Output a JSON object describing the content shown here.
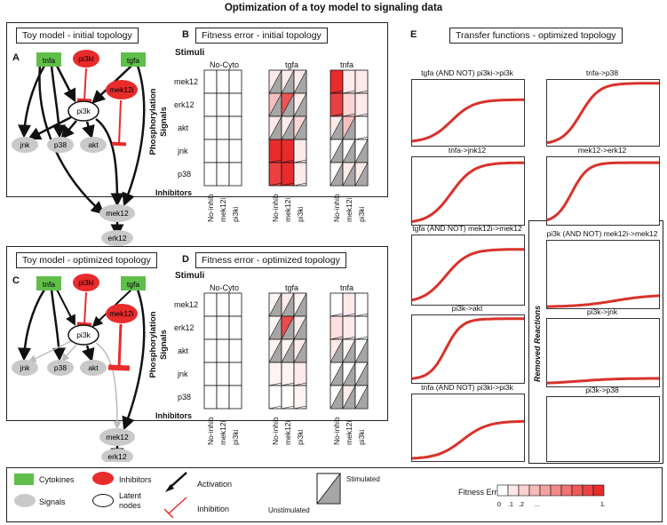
{
  "title": "Optimization of a toy model to signaling data",
  "panels": {
    "A": {
      "letter": "A",
      "header": "Toy model - initial topology"
    },
    "B": {
      "letter": "B",
      "header": "Fitness error - initial topology"
    },
    "C": {
      "letter": "C",
      "header": "Toy model - optimized topology"
    },
    "D": {
      "letter": "D",
      "header": "Fitness error - optimized topology"
    },
    "E": {
      "letter": "E",
      "header": "Transfer functions - optimized topology"
    }
  },
  "nodes": {
    "tnfa": "tnfa",
    "tgfa": "tgfa",
    "pi3ki": "pi3ki",
    "mek12i": "mek12i",
    "pi3k": "pi3k",
    "jnk": "jnk",
    "p38": "p38",
    "akt": "akt",
    "mek12": "mek12",
    "erk12": "erk12"
  },
  "heatmap": {
    "stimuli_label": "Stimuli",
    "signals_label": "Phosphorylation\nSignals",
    "inhibitors_label": "Inhibitors",
    "stimuli": [
      "No-Cyto",
      "tgfa",
      "tnfa"
    ],
    "signals": [
      "mek12",
      "erk12",
      "akt",
      "jnk",
      "p38"
    ],
    "inhibitors": [
      "No-inhib",
      "mek12i",
      "pi3ki"
    ]
  },
  "transfer_functions": {
    "left": [
      "tgfa (AND NOT) pi3ki->pi3k",
      "tnfa->jnk12",
      "tgfa (AND NOT) mek12i->mek12",
      "pi3k->akt",
      "tnfa (AND NOT) pi3ki->pi3k"
    ],
    "right": [
      "tnfa->p38",
      "mek12->erk12"
    ],
    "removed": [
      "pi3k (AND NOT) mek12i->mek12",
      "pi3k->jnk",
      "pi3k->p38"
    ],
    "removed_label": "Removed Reactions"
  },
  "legend": {
    "cytokines": "Cytokines",
    "inhibitors": "Inhibitors",
    "activation": "Activation",
    "signals": "Signals",
    "latent": "Latent\nnodes",
    "inhibition": "Inhibition",
    "stimulated": "Stimulated",
    "unstimulated": "Unstimulated",
    "fitness_error": "Fitness Error",
    "scale": [
      "0",
      ".1",
      ".2",
      "...",
      "1."
    ]
  },
  "colors": {
    "cytokine": "#5fbf4a",
    "inhibitor": "#e82b2b",
    "signal": "#c9c9c9",
    "error_max": "#e82b2b",
    "gray": "#a6a6a6"
  }
}
